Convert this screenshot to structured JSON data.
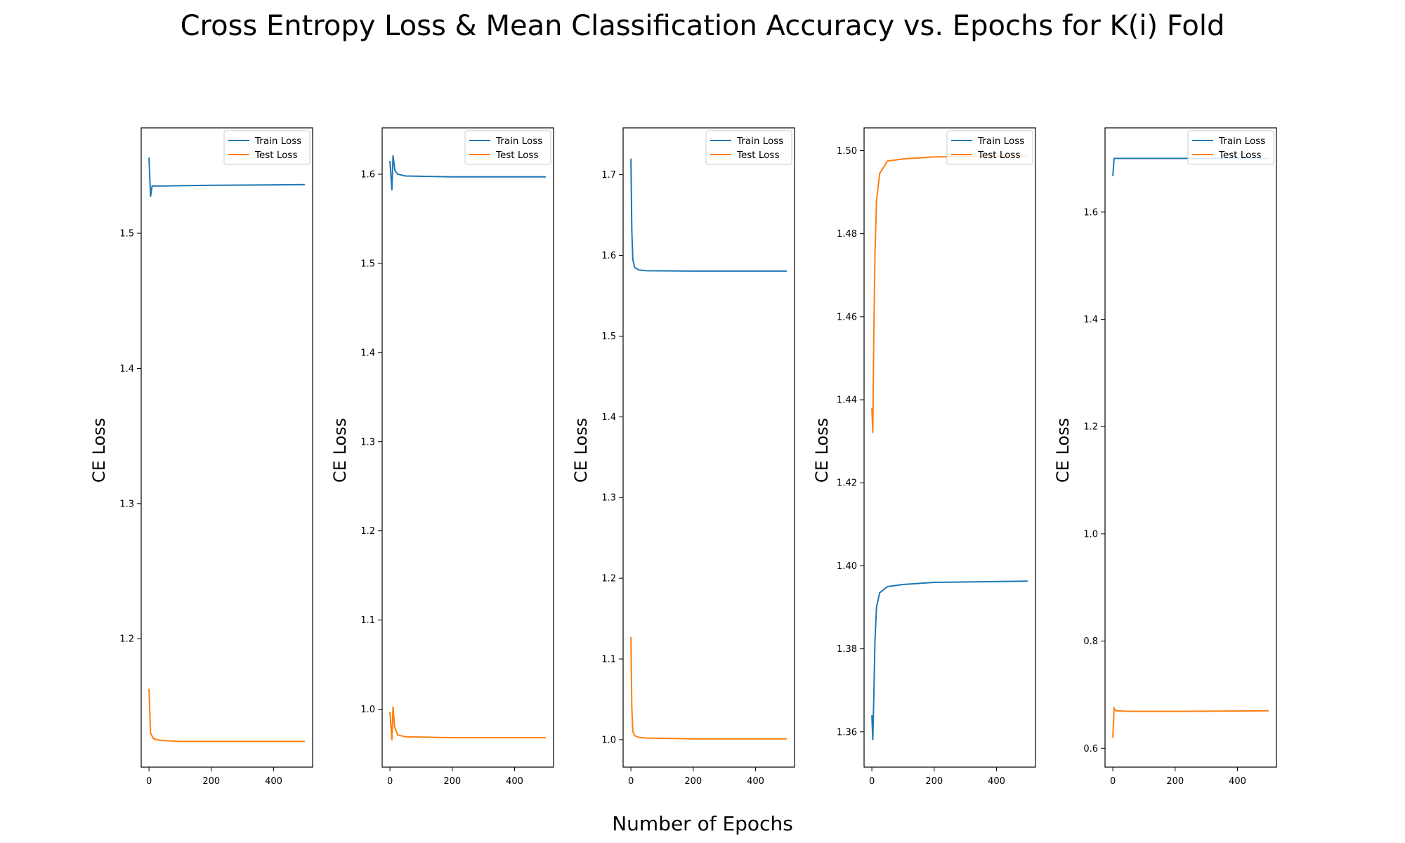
{
  "figure": {
    "title": "Cross Entropy Loss & Mean Classification Accuracy vs. Epochs for K(i) Fold",
    "xlabel": "Number of Epochs"
  },
  "colors": {
    "train": "#1f77b4",
    "test": "#ff7f0e"
  },
  "chart_data": [
    {
      "type": "line",
      "ylabel": "CE Loss",
      "xlim": [
        -25,
        525
      ],
      "ylim": [
        1.105,
        1.578
      ],
      "xticks": [
        0,
        200,
        400
      ],
      "yticks": [
        1.2,
        1.3,
        1.4,
        1.5
      ],
      "legend": "top-right",
      "series": [
        {
          "name": "Train Loss",
          "points": [
            [
              0,
              1.556
            ],
            [
              5,
              1.527
            ],
            [
              10,
              1.535
            ],
            [
              50,
              1.535
            ],
            [
              200,
              1.5355
            ],
            [
              500,
              1.536
            ]
          ]
        },
        {
          "name": "Test Loss",
          "points": [
            [
              0,
              1.163
            ],
            [
              5,
              1.13
            ],
            [
              15,
              1.126
            ],
            [
              30,
              1.125
            ],
            [
              60,
              1.1245
            ],
            [
              100,
              1.124
            ],
            [
              500,
              1.124
            ]
          ]
        }
      ]
    },
    {
      "type": "line",
      "ylabel": "CE Loss",
      "xlim": [
        -25,
        525
      ],
      "ylim": [
        0.935,
        1.652
      ],
      "xticks": [
        0,
        200,
        400
      ],
      "yticks": [
        1.0,
        1.1,
        1.2,
        1.3,
        1.4,
        1.5,
        1.6
      ],
      "legend": "top-right",
      "series": [
        {
          "name": "Train Loss",
          "points": [
            [
              0,
              1.615
            ],
            [
              6,
              1.582
            ],
            [
              10,
              1.621
            ],
            [
              16,
              1.604
            ],
            [
              25,
              1.6
            ],
            [
              50,
              1.598
            ],
            [
              200,
              1.597
            ],
            [
              500,
              1.597
            ]
          ]
        },
        {
          "name": "Test Loss",
          "points": [
            [
              0,
              0.997
            ],
            [
              6,
              0.965
            ],
            [
              10,
              1.003
            ],
            [
              15,
              0.98
            ],
            [
              25,
              0.971
            ],
            [
              50,
              0.969
            ],
            [
              200,
              0.968
            ],
            [
              500,
              0.968
            ]
          ]
        }
      ]
    },
    {
      "type": "line",
      "ylabel": "CE Loss",
      "xlim": [
        -25,
        525
      ],
      "ylim": [
        0.966,
        1.758
      ],
      "xticks": [
        0,
        200,
        400
      ],
      "yticks": [
        1.0,
        1.1,
        1.2,
        1.3,
        1.4,
        1.5,
        1.6,
        1.7
      ],
      "legend": "top-right",
      "series": [
        {
          "name": "Train Loss",
          "points": [
            [
              0,
              1.72
            ],
            [
              3,
              1.63
            ],
            [
              6,
              1.595
            ],
            [
              12,
              1.585
            ],
            [
              25,
              1.582
            ],
            [
              50,
              1.581
            ],
            [
              200,
              1.5805
            ],
            [
              500,
              1.5805
            ]
          ]
        },
        {
          "name": "Test Loss",
          "points": [
            [
              0,
              1.127
            ],
            [
              3,
              1.04
            ],
            [
              6,
              1.01
            ],
            [
              12,
              1.005
            ],
            [
              25,
              1.003
            ],
            [
              50,
              1.002
            ],
            [
              200,
              1.001
            ],
            [
              500,
              1.001
            ]
          ]
        }
      ]
    },
    {
      "type": "line",
      "ylabel": "CE Loss",
      "xlim": [
        -25,
        525
      ],
      "ylim": [
        1.3515,
        1.5055
      ],
      "xticks": [
        0,
        200,
        400
      ],
      "yticks": [
        1.36,
        1.38,
        1.4,
        1.42,
        1.44,
        1.46,
        1.48,
        1.5
      ],
      "legend": "top-right",
      "series": [
        {
          "name": "Train Loss",
          "points": [
            [
              0,
              1.364
            ],
            [
              3,
              1.358
            ],
            [
              6,
              1.368
            ],
            [
              10,
              1.382
            ],
            [
              15,
              1.39
            ],
            [
              25,
              1.3935
            ],
            [
              50,
              1.395
            ],
            [
              100,
              1.3955
            ],
            [
              200,
              1.396
            ],
            [
              500,
              1.3963
            ]
          ]
        },
        {
          "name": "Test Loss",
          "points": [
            [
              0,
              1.438
            ],
            [
              3,
              1.432
            ],
            [
              6,
              1.455
            ],
            [
              10,
              1.475
            ],
            [
              15,
              1.488
            ],
            [
              25,
              1.4945
            ],
            [
              50,
              1.4975
            ],
            [
              100,
              1.498
            ],
            [
              200,
              1.4985
            ],
            [
              500,
              1.4988
            ]
          ]
        }
      ]
    },
    {
      "type": "line",
      "ylabel": "CE Loss",
      "xlim": [
        -25,
        525
      ],
      "ylim": [
        0.565,
        1.757
      ],
      "xticks": [
        0,
        200,
        400
      ],
      "yticks": [
        0.6,
        0.8,
        1.0,
        1.2,
        1.4,
        1.6
      ],
      "legend": "top-right",
      "series": [
        {
          "name": "Train Loss",
          "points": [
            [
              0,
              1.667
            ],
            [
              4,
              1.7
            ],
            [
              10,
              1.7
            ],
            [
              500,
              1.7
            ]
          ]
        },
        {
          "name": "Test Loss",
          "points": [
            [
              0,
              0.62
            ],
            [
              4,
              0.675
            ],
            [
              10,
              0.67
            ],
            [
              50,
              0.669
            ],
            [
              200,
              0.669
            ],
            [
              500,
              0.67
            ]
          ]
        }
      ]
    }
  ]
}
